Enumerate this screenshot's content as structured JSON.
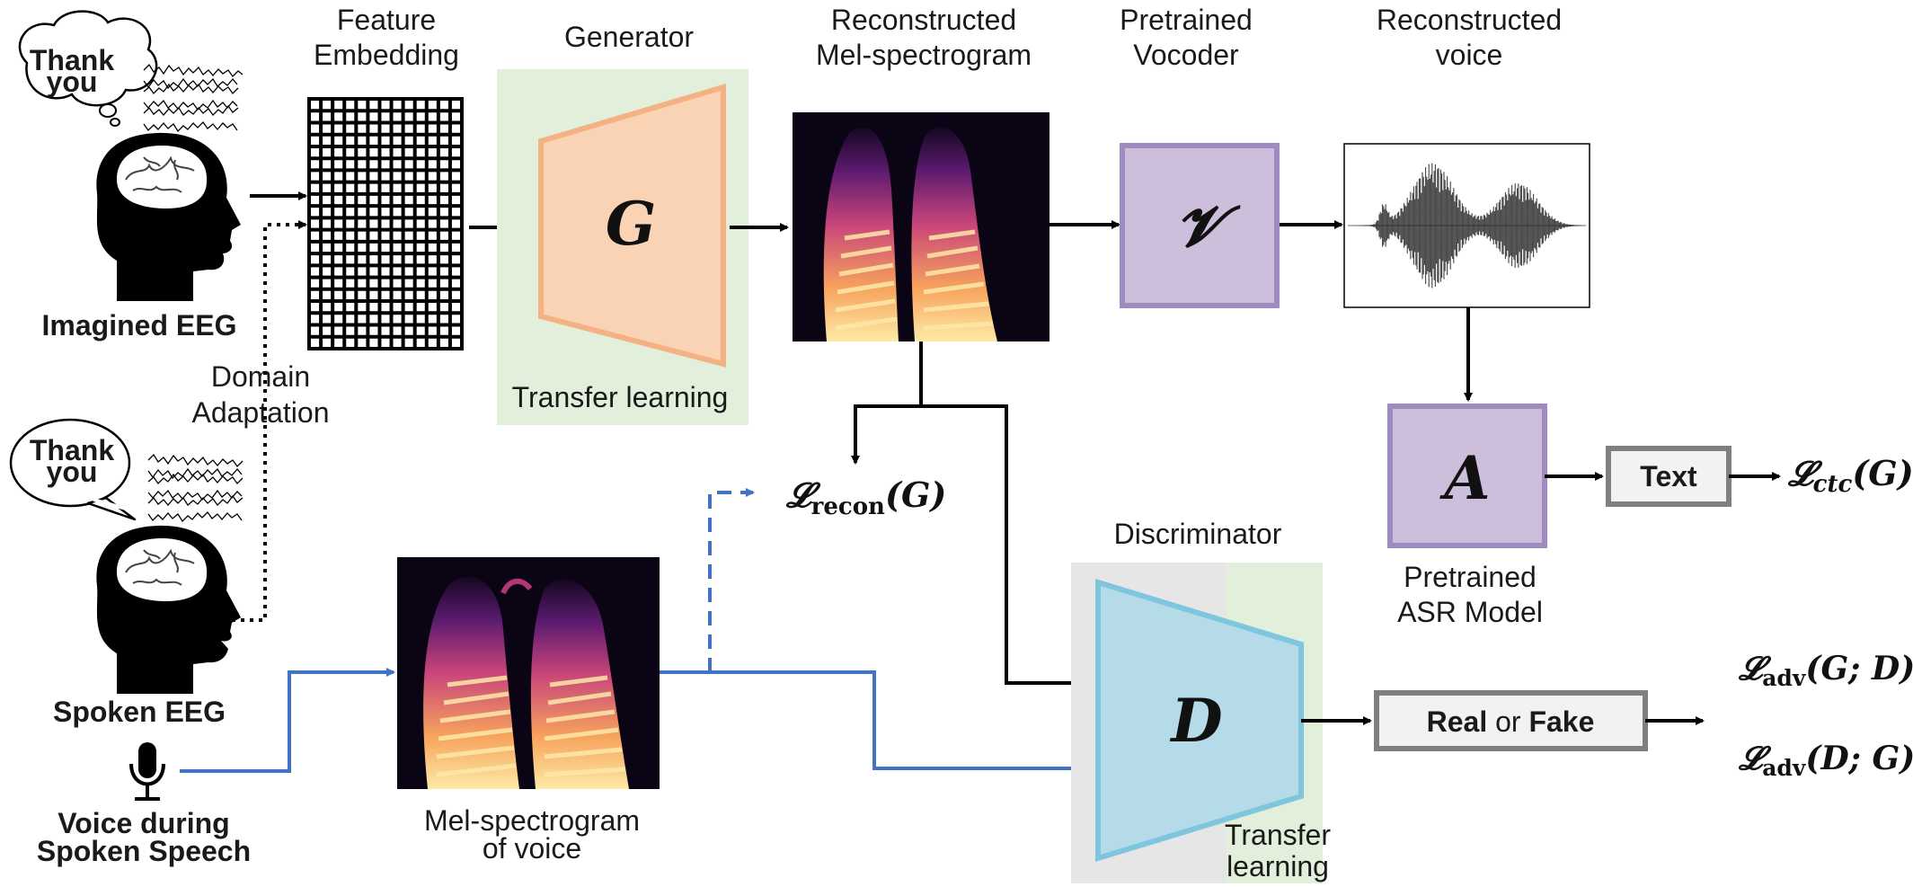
{
  "sources": {
    "imagined_eeg": "Imagined EEG",
    "spoken_eeg": "Spoken EEG",
    "voice_line1": "Voice during",
    "voice_line2": "Spoken Speech",
    "thought_text_line1": "Thank",
    "thought_text_line2": "you",
    "speech_text_line1": "Thank",
    "speech_text_line2": "you",
    "domain_adaptation_line1": "Domain",
    "domain_adaptation_line2": "Adaptation"
  },
  "feature_embedding": {
    "line1": "Feature",
    "line2": "Embedding"
  },
  "generator": {
    "title": "Generator",
    "symbol": "G",
    "note": "Transfer learning"
  },
  "reconstructed_mel": {
    "line1": "Reconstructed",
    "line2": "Mel-spectrogram"
  },
  "vocoder": {
    "line1": "Pretrained",
    "line2": "Vocoder",
    "symbol": "𝓥"
  },
  "reconstructed_voice": {
    "line1": "Reconstructed",
    "line2": "voice"
  },
  "asr": {
    "symbol": "A",
    "line1": "Pretrained",
    "line2": "ASR Model"
  },
  "text_box": {
    "label": "Text"
  },
  "discriminator": {
    "title": "Discriminator",
    "symbol": "D",
    "note_line1": "Transfer",
    "note_line2": "learning"
  },
  "real_fake": {
    "real": "Real",
    "or": " or ",
    "fake": "Fake"
  },
  "mel_voice": {
    "line1": "Mel-spectrogram",
    "line2": "of voice"
  },
  "losses": {
    "recon": {
      "script": "𝓛",
      "sub": "recon",
      "arg": "(G)"
    },
    "ctc": {
      "script": "𝓛",
      "sub": "ctc",
      "arg": "(G)"
    },
    "adv_g": {
      "script": "𝓛",
      "sub": "adv",
      "arg": "(G; D)"
    },
    "adv_d": {
      "script": "𝓛",
      "sub": "adv",
      "arg": "(D; G)"
    }
  },
  "colors": {
    "generator_fill": "#f9d3b3",
    "generator_stroke": "#f4b183",
    "generator_panel": "#e2efda",
    "purple_fill": "#cdbfdc",
    "purple_stroke": "#a08bc0",
    "disc_fill": "#b4dbe7",
    "disc_stroke": "#7ec6de",
    "disc_panel_gray": "#e6e6e6",
    "disc_panel_green": "#e2efda",
    "blue_arrow": "#4472c4",
    "gray_box_stroke": "#7f7f7f"
  }
}
